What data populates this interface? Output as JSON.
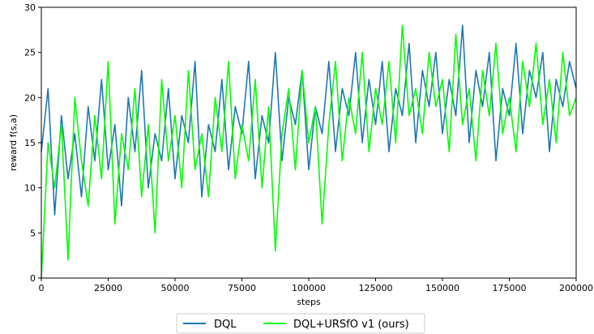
{
  "chart_data": {
    "type": "line",
    "title": "",
    "xlabel": "steps",
    "ylabel": "reward f(s,a)",
    "xlim": [
      0,
      200000
    ],
    "ylim": [
      0,
      30
    ],
    "x_ticks": [
      0,
      25000,
      50000,
      75000,
      100000,
      125000,
      150000,
      175000,
      200000
    ],
    "x_tick_labels": [
      "0",
      "25000",
      "50000",
      "75000",
      "100000",
      "125000",
      "150000",
      "175000",
      "200000"
    ],
    "y_ticks": [
      0,
      5,
      10,
      15,
      20,
      25,
      30
    ],
    "y_tick_labels": [
      "0",
      "5",
      "10",
      "15",
      "20",
      "25",
      "30"
    ],
    "grid": false,
    "legend_position": "bottom-center",
    "series": [
      {
        "name": "DQL",
        "color": "#1f77b4",
        "x": [
          0,
          2500,
          5000,
          7500,
          10000,
          12500,
          15000,
          17500,
          20000,
          22500,
          25000,
          27500,
          30000,
          32500,
          35000,
          37500,
          40000,
          42500,
          45000,
          47500,
          50000,
          52500,
          55000,
          57500,
          60000,
          62500,
          65000,
          67500,
          70000,
          72500,
          75000,
          77500,
          80000,
          82500,
          85000,
          87500,
          90000,
          92500,
          95000,
          97500,
          100000,
          102500,
          105000,
          107500,
          110000,
          112500,
          115000,
          117500,
          120000,
          122500,
          125000,
          127500,
          130000,
          132500,
          135000,
          137500,
          140000,
          142500,
          145000,
          147500,
          150000,
          152500,
          155000,
          157500,
          160000,
          162500,
          165000,
          167500,
          170000,
          172500,
          175000,
          177500,
          180000,
          182500,
          185000,
          187500,
          190000,
          192500,
          195000,
          197500,
          200000
        ],
        "y": [
          14,
          21,
          7,
          18,
          11,
          16,
          9,
          19,
          13,
          22,
          12,
          17,
          8,
          20,
          14,
          23,
          10,
          16,
          13,
          21,
          11,
          18,
          15,
          24,
          9,
          17,
          14,
          22,
          12,
          19,
          16,
          24,
          11,
          18,
          15,
          25,
          13,
          20,
          17,
          23,
          12,
          19,
          16,
          24,
          14,
          21,
          18,
          25,
          15,
          22,
          17,
          24,
          14,
          21,
          18,
          26,
          15,
          23,
          19,
          25,
          16,
          22,
          18,
          28,
          15,
          23,
          19,
          25,
          13,
          21,
          18,
          26,
          16,
          23,
          20,
          25,
          14,
          22,
          19,
          24,
          21
        ]
      },
      {
        "name": "DQL+URSfO v1 (ours)",
        "color": "#00ff00",
        "x": [
          0,
          2500,
          5000,
          7500,
          10000,
          12500,
          15000,
          17500,
          20000,
          22500,
          25000,
          27500,
          30000,
          32500,
          35000,
          37500,
          40000,
          42500,
          45000,
          47500,
          50000,
          52500,
          55000,
          57500,
          60000,
          62500,
          65000,
          67500,
          70000,
          72500,
          75000,
          77500,
          80000,
          82500,
          85000,
          87500,
          90000,
          92500,
          95000,
          97500,
          100000,
          102500,
          105000,
          107500,
          110000,
          112500,
          115000,
          117500,
          120000,
          122500,
          125000,
          127500,
          130000,
          132500,
          135000,
          137500,
          140000,
          142500,
          145000,
          147500,
          150000,
          152500,
          155000,
          157500,
          160000,
          162500,
          165000,
          167500,
          170000,
          172500,
          175000,
          177500,
          180000,
          182500,
          185000,
          187500,
          190000,
          192500,
          195000,
          197500,
          200000
        ],
        "y": [
          0,
          15,
          10,
          17,
          2,
          20,
          13,
          8,
          18,
          11,
          24,
          6,
          16,
          12,
          21,
          9,
          17,
          5,
          22,
          13,
          18,
          10,
          23,
          12,
          16,
          9,
          20,
          14,
          24,
          11,
          17,
          13,
          22,
          10,
          19,
          3,
          16,
          21,
          12,
          23,
          15,
          19,
          6,
          17,
          24,
          13,
          20,
          16,
          25,
          14,
          21,
          17,
          24,
          15,
          28,
          18,
          21,
          16,
          25,
          19,
          22,
          14,
          27,
          17,
          21,
          13,
          23,
          18,
          26,
          16,
          20,
          14,
          24,
          19,
          26,
          17,
          22,
          15,
          25,
          18,
          20
        ]
      }
    ]
  }
}
